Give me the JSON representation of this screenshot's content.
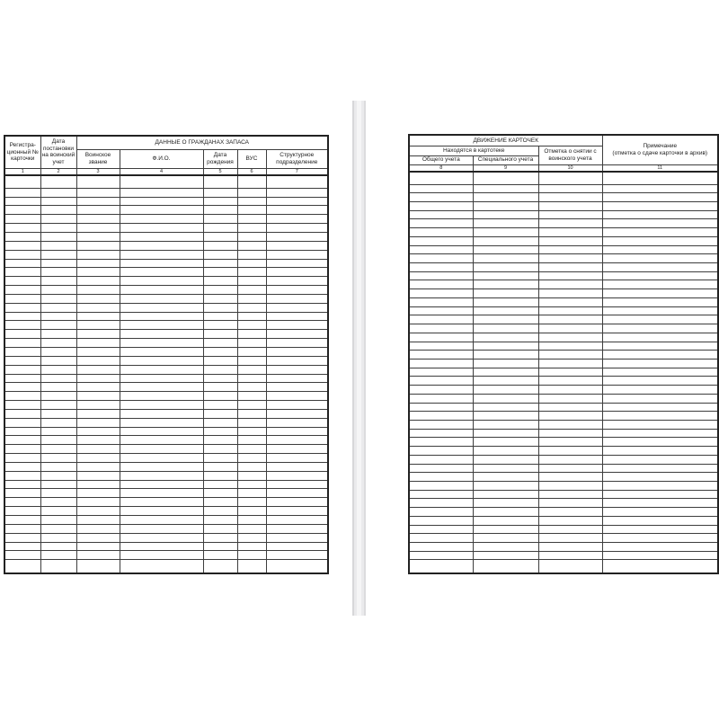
{
  "page": {
    "background": "#ffffff",
    "border_color": "#222222",
    "grid_color": "#3d3d3d",
    "spine_color": "#eaeaec"
  },
  "left_table": {
    "headers": {
      "reg_number": "Регистра-\nционный №\nкарточки",
      "reg_date": "Дата\nпостановки\nна воинский\nучет",
      "group_title": "ДАННЫЕ О ГРАЖДАНАХ ЗАПАСА",
      "rank": "Воинское\nзвание",
      "fio": "Ф.И.О.",
      "birth_date": "Дата\nрождения",
      "vus": "ВУС",
      "unit": "Структурное\nподразделение"
    },
    "numbers": [
      "1",
      "2",
      "3",
      "4",
      "5",
      "6",
      "7"
    ],
    "row_count": 44
  },
  "right_table": {
    "headers": {
      "movement_title": "ДВИЖЕНИЕ КАРТОЧЕК",
      "in_card_index": "Находятся в картотеке",
      "general": "Общего учета",
      "special": "Специального учета",
      "removal": "Отметка о снятии с\nвоинского учета",
      "note": "Примечание\n(отметка о сдаче карточки в архив)"
    },
    "numbers": [
      "8",
      "9",
      "10",
      "11"
    ],
    "row_count": 45
  }
}
